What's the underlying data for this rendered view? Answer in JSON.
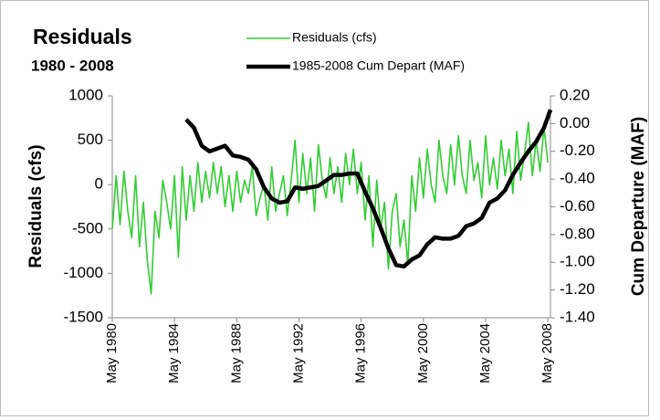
{
  "chart_data": {
    "type": "line",
    "title": "Residuals",
    "subtitle": "1980 - 2008",
    "y_label": "Residuals (cfs)",
    "y2_label": "Cum Departure (MAF)",
    "xlim": [
      "1980-05",
      "2008-07"
    ],
    "xticks": [
      {
        "value": "1980-05",
        "label": "May 1980"
      },
      {
        "value": "1984-05",
        "label": "May 1984"
      },
      {
        "value": "1988-05",
        "label": "May 1988"
      },
      {
        "value": "1992-05",
        "label": "May 1992"
      },
      {
        "value": "1996-05",
        "label": "May 1996"
      },
      {
        "value": "2000-05",
        "label": "May 2000"
      },
      {
        "value": "2004-05",
        "label": "May 2004"
      },
      {
        "value": "2008-05",
        "label": "May 2008"
      }
    ],
    "ylim": [
      -1500,
      1000
    ],
    "yticks": [
      -1500,
      -1000,
      -500,
      0,
      500,
      1000
    ],
    "y2lim": [
      -1.4,
      0.2
    ],
    "y2ticks": [
      {
        "value": -1.4,
        "label": "-1.40"
      },
      {
        "value": -1.2,
        "label": "-1.20"
      },
      {
        "value": -1.0,
        "label": "-1.00"
      },
      {
        "value": -0.8,
        "label": "-0.80"
      },
      {
        "value": -0.6,
        "label": "-0.60"
      },
      {
        "value": -0.4,
        "label": "-0.40"
      },
      {
        "value": -0.2,
        "label": "-0.20"
      },
      {
        "value": 0.0,
        "label": "0.00"
      },
      {
        "value": 0.2,
        "label": "0.20"
      }
    ],
    "series": [
      {
        "name": "Residuals (cfs)",
        "color": "#33cc33",
        "axis": "y",
        "x": [
          "1980-05",
          "1980-08",
          "1980-11",
          "1981-02",
          "1981-05",
          "1981-08",
          "1981-11",
          "1982-02",
          "1982-05",
          "1982-08",
          "1982-11",
          "1983-02",
          "1983-05",
          "1983-08",
          "1983-11",
          "1984-02",
          "1984-05",
          "1984-08",
          "1984-11",
          "1985-02",
          "1985-05",
          "1985-08",
          "1985-11",
          "1986-02",
          "1986-05",
          "1986-08",
          "1986-11",
          "1987-02",
          "1987-05",
          "1987-08",
          "1987-11",
          "1988-02",
          "1988-05",
          "1988-08",
          "1988-11",
          "1989-02",
          "1989-05",
          "1989-08",
          "1989-11",
          "1990-02",
          "1990-05",
          "1990-08",
          "1990-11",
          "1991-02",
          "1991-05",
          "1991-08",
          "1991-11",
          "1992-02",
          "1992-05",
          "1992-08",
          "1992-11",
          "1993-02",
          "1993-05",
          "1993-08",
          "1993-11",
          "1994-02",
          "1994-05",
          "1994-08",
          "1994-11",
          "1995-02",
          "1995-05",
          "1995-08",
          "1995-11",
          "1996-02",
          "1996-05",
          "1996-08",
          "1996-11",
          "1997-02",
          "1997-05",
          "1997-08",
          "1997-11",
          "1998-02",
          "1998-05",
          "1998-08",
          "1998-11",
          "1999-02",
          "1999-05",
          "1999-08",
          "1999-11",
          "2000-02",
          "2000-05",
          "2000-08",
          "2000-11",
          "2001-02",
          "2001-05",
          "2001-08",
          "2001-11",
          "2002-02",
          "2002-05",
          "2002-08",
          "2002-11",
          "2003-02",
          "2003-05",
          "2003-08",
          "2003-11",
          "2004-02",
          "2004-05",
          "2004-08",
          "2004-11",
          "2005-02",
          "2005-05",
          "2005-08",
          "2005-11",
          "2006-02",
          "2006-05",
          "2006-08",
          "2006-11",
          "2007-02",
          "2007-05",
          "2007-08",
          "2007-11",
          "2008-02",
          "2008-05"
        ],
        "values": [
          -500,
          100,
          -450,
          150,
          -300,
          -600,
          100,
          -700,
          -200,
          -850,
          -1230,
          -300,
          -600,
          50,
          -200,
          -500,
          100,
          -820,
          200,
          -400,
          100,
          -300,
          250,
          -200,
          150,
          -150,
          250,
          -100,
          200,
          -250,
          100,
          -300,
          150,
          -200,
          50,
          -100,
          200,
          -350,
          -150,
          0,
          -400,
          200,
          -300,
          -100,
          100,
          -350,
          50,
          500,
          -200,
          350,
          -100,
          300,
          -300,
          450,
          50,
          -150,
          300,
          -100,
          200,
          -200,
          350,
          0,
          400,
          -100,
          250,
          -400,
          100,
          -700,
          50,
          -500,
          -200,
          -950,
          -300,
          -100,
          -700,
          -400,
          -900,
          100,
          -300,
          300,
          -150,
          400,
          0,
          -200,
          500,
          100,
          -100,
          450,
          0,
          550,
          100,
          -100,
          500,
          50,
          250,
          -150,
          550,
          0,
          300,
          -50,
          500,
          100,
          400,
          -100,
          600,
          50,
          350,
          700,
          100,
          500,
          150,
          650,
          250
        ]
      },
      {
        "name": "1985-2008 Cum Depart (MAF)",
        "color": "#000000",
        "axis": "y2",
        "x": [
          "1985-02",
          "1985-08",
          "1986-02",
          "1986-08",
          "1987-02",
          "1987-08",
          "1988-02",
          "1988-08",
          "1989-02",
          "1989-08",
          "1990-02",
          "1990-08",
          "1991-02",
          "1991-08",
          "1992-02",
          "1992-08",
          "1993-02",
          "1993-08",
          "1994-02",
          "1994-08",
          "1995-02",
          "1995-08",
          "1996-02",
          "1996-08",
          "1997-02",
          "1997-08",
          "1998-02",
          "1998-08",
          "1999-02",
          "1999-08",
          "2000-02",
          "2000-08",
          "2001-02",
          "2001-08",
          "2002-02",
          "2002-08",
          "2003-02",
          "2003-08",
          "2004-02",
          "2004-08",
          "2005-02",
          "2005-08",
          "2006-02",
          "2006-08",
          "2007-02",
          "2007-08",
          "2008-02",
          "2008-07"
        ],
        "values": [
          0.03,
          -0.03,
          -0.16,
          -0.2,
          -0.18,
          -0.16,
          -0.23,
          -0.24,
          -0.26,
          -0.33,
          -0.46,
          -0.54,
          -0.57,
          -0.56,
          -0.46,
          -0.47,
          -0.46,
          -0.45,
          -0.41,
          -0.37,
          -0.37,
          -0.36,
          -0.36,
          -0.49,
          -0.61,
          -0.75,
          -0.9,
          -1.02,
          -1.03,
          -0.98,
          -0.95,
          -0.87,
          -0.82,
          -0.83,
          -0.83,
          -0.81,
          -0.74,
          -0.72,
          -0.68,
          -0.57,
          -0.54,
          -0.48,
          -0.37,
          -0.28,
          -0.2,
          -0.13,
          -0.03,
          0.1
        ]
      }
    ]
  }
}
